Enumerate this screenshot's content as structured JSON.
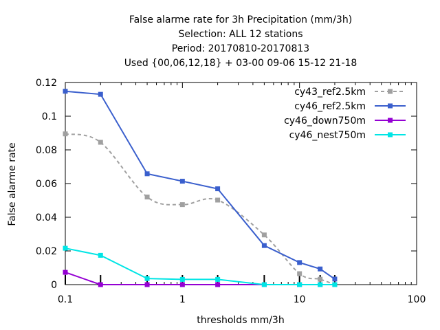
{
  "chart_data": {
    "type": "line",
    "title_lines": [
      "False alarme rate  for 3h Precipitation (mm/3h)",
      "Selection: ALL      12 stations",
      "Period: 20170810-20170813",
      "Used {00,06,12,18} + 03-00 09-06 15-12 21-18"
    ],
    "xlabel": "thresholds mm/3h",
    "ylabel": "False alarme rate",
    "x_scale": "log",
    "xlim": [
      0.1,
      100
    ],
    "ylim": [
      0,
      0.12
    ],
    "x_ticks": [
      0.1,
      1,
      10,
      100
    ],
    "x_tick_labels": [
      "0.1",
      "1",
      "10",
      "100"
    ],
    "y_ticks": [
      0,
      0.02,
      0.04,
      0.06,
      0.08,
      0.1,
      0.12
    ],
    "y_tick_labels": [
      "0",
      "0.02",
      "0.04",
      "0.06",
      "0.08",
      "0.1",
      "0.12"
    ],
    "threshold_marks": [
      0.1,
      0.2,
      0.5,
      1,
      2,
      5,
      10,
      15,
      20
    ],
    "legend_position": "top-right",
    "grid": false,
    "series": [
      {
        "name": "cy43_ref2.5km",
        "color": "#a0a0a0",
        "dashed": true,
        "smooth": true,
        "x": [
          0.1,
          0.2,
          0.5,
          1,
          2,
          5,
          10,
          15,
          20
        ],
        "y": [
          0.0895,
          0.0845,
          0.052,
          0.0475,
          0.0502,
          0.0295,
          0.0065,
          0.0032,
          0.0
        ]
      },
      {
        "name": "cy46_ref2.5km",
        "color": "#3a5fcd",
        "dashed": false,
        "smooth": false,
        "x": [
          0.1,
          0.2,
          0.5,
          1,
          2,
          5,
          10,
          15,
          20
        ],
        "y": [
          0.1148,
          0.113,
          0.0658,
          0.0614,
          0.0569,
          0.0232,
          0.0131,
          0.0093,
          0.0033
        ]
      },
      {
        "name": "cy46_down750m",
        "color": "#9400d3",
        "dashed": false,
        "smooth": false,
        "x": [
          0.1,
          0.2,
          0.5,
          1,
          2,
          5,
          10,
          15,
          20
        ],
        "y": [
          0.0073,
          0.0,
          0.0,
          0.0,
          0.0,
          0.0,
          0.0,
          0.0,
          0.0
        ]
      },
      {
        "name": "cy46_nest750m",
        "color": "#00e5e5",
        "dashed": false,
        "smooth": false,
        "x": [
          0.1,
          0.2,
          0.5,
          1,
          2,
          5,
          10,
          15,
          20
        ],
        "y": [
          0.0216,
          0.0174,
          0.0036,
          0.0031,
          0.0031,
          0.0,
          0.0,
          0.0,
          0.0
        ]
      }
    ]
  }
}
